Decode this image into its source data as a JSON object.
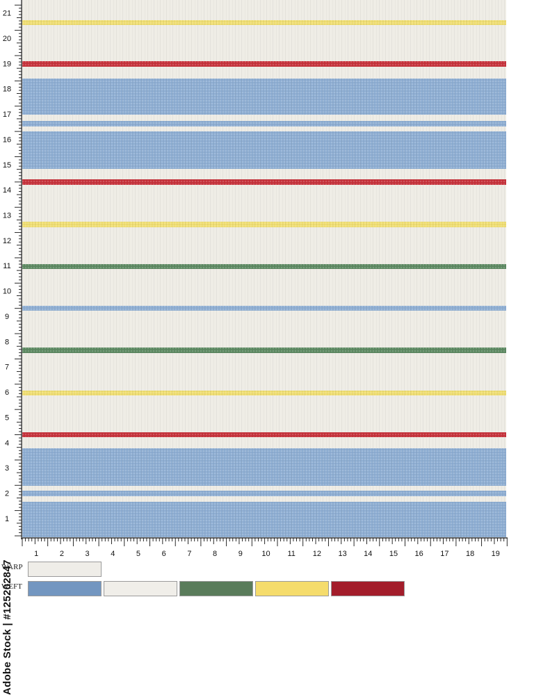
{
  "left_ruler_labels": [
    "1",
    "2",
    "3",
    "4",
    "5",
    "6",
    "7",
    "8",
    "9",
    "10",
    "11",
    "12",
    "13",
    "14",
    "15",
    "16",
    "17",
    "18",
    "19",
    "20",
    "21"
  ],
  "bottom_ruler_labels": [
    "1",
    "2",
    "3",
    "4",
    "5",
    "6",
    "7",
    "8",
    "9",
    "10",
    "11",
    "12",
    "13",
    "14",
    "15",
    "16",
    "17",
    "18",
    "19"
  ],
  "legend": {
    "warp_label": "WARP",
    "weft_label": "WEFT",
    "warp_colors": [
      "#efede8"
    ],
    "weft_colors": [
      "#7396c0",
      "#f0eee9",
      "#5a7c5b",
      "#f5dc6c",
      "#a31d2b"
    ]
  },
  "fabric": {
    "ground_color": "#efede6",
    "stripe_colors": {
      "blue": "#8fafd4",
      "red": "#c8333c",
      "yellow": "#f1df73",
      "green": "#5d8a62"
    }
  },
  "watermark_text": "Adobe Stock | #125202847"
}
